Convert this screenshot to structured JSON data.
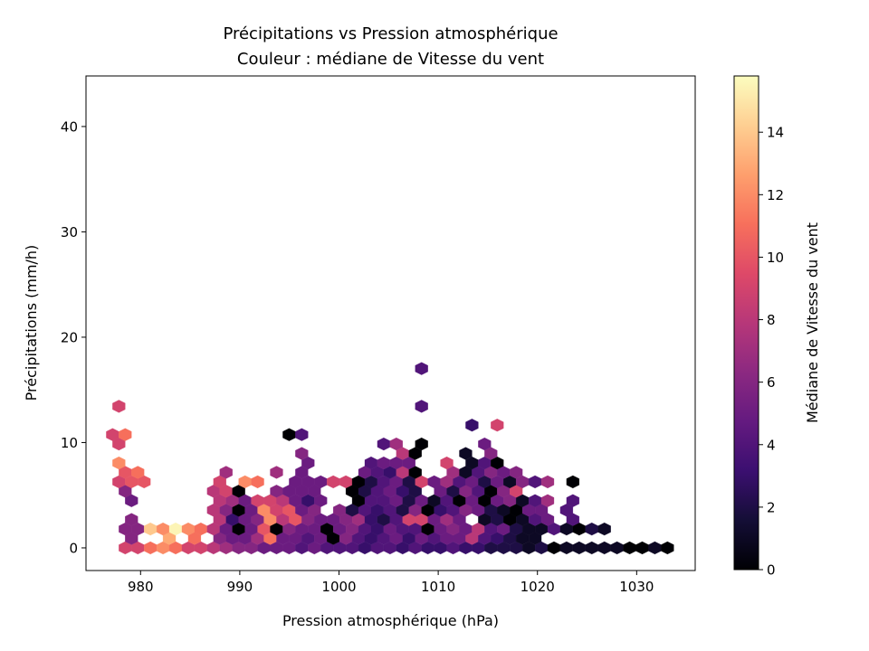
{
  "chart_data": {
    "type": "hexbin",
    "title": [
      "Précipitations vs Pression atmosphérique",
      "Couleur : médiane de Vitesse du vent"
    ],
    "xlabel": "Pression atmosphérique (hPa)",
    "ylabel": "Précipitations (mm/h)",
    "xlim": [
      974.5,
      1035.9
    ],
    "ylim": [
      -2.15,
      44.8
    ],
    "xticks": [
      980,
      990,
      1000,
      1010,
      1020,
      1030
    ],
    "yticks": [
      0,
      10,
      20,
      30,
      40
    ],
    "grid": false,
    "colorbar": {
      "label": "Médiane de Vitesse du vent",
      "cmap": "magma",
      "vmin": 0,
      "vmax": 15.8,
      "ticks": [
        0,
        2,
        4,
        6,
        8,
        10,
        12,
        14
      ],
      "position": "right"
    },
    "hex_grid": {
      "x_origin": 977.18,
      "x_step": 1.271,
      "y_step": 0.896
    },
    "rows": [
      {
        "y": 0.0,
        "shifted": false,
        "values": [
          null,
          9,
          9,
          11,
          12,
          11,
          9,
          9,
          8,
          7,
          6,
          6,
          5,
          5,
          5,
          4,
          5,
          4,
          4,
          4,
          3,
          4,
          4,
          3,
          4,
          3,
          3,
          4,
          3,
          3,
          2,
          2,
          2,
          1,
          2,
          0,
          1,
          1,
          1,
          1,
          1,
          0,
          0,
          1,
          0
        ]
      },
      {
        "y": 0.9,
        "shifted": true,
        "values": [
          null,
          6,
          null,
          null,
          13,
          null,
          11,
          null,
          6,
          5,
          5,
          7,
          11,
          5,
          5,
          4,
          5,
          0,
          6,
          4,
          3,
          4,
          5,
          3,
          5,
          4,
          5,
          5,
          8,
          4,
          3,
          2,
          1,
          1
        ]
      },
      {
        "y": 1.79,
        "shifted": false,
        "values": [
          null,
          6,
          6,
          14,
          12,
          15.5,
          12,
          11,
          8,
          5,
          0,
          5,
          10,
          0,
          6,
          5,
          5,
          0,
          5,
          6,
          4,
          3,
          5,
          4,
          4,
          0,
          5,
          6,
          5,
          8,
          4,
          5,
          2,
          1,
          1,
          4,
          1,
          0,
          2,
          1
        ]
      },
      {
        "y": 2.69,
        "shifted": true,
        "values": [
          null,
          6,
          null,
          null,
          null,
          null,
          null,
          null,
          8,
          3,
          5,
          6,
          12,
          8,
          10,
          6,
          5,
          5,
          6,
          7,
          3,
          2,
          4,
          9,
          9,
          5,
          7,
          5,
          null,
          1,
          2,
          0,
          1,
          4,
          5,
          null,
          4
        ]
      },
      {
        "y": 3.58,
        "shifted": false,
        "values": [
          null,
          null,
          null,
          null,
          null,
          null,
          null,
          null,
          8,
          6,
          0,
          5,
          12,
          9,
          10,
          5,
          6,
          null,
          6,
          2,
          4,
          3,
          4,
          2,
          6,
          0,
          3,
          4,
          6,
          5,
          2,
          1,
          0,
          5,
          5,
          null,
          4
        ]
      },
      {
        "y": 4.48,
        "shifted": true,
        "values": [
          null,
          5,
          null,
          null,
          null,
          null,
          null,
          null,
          8,
          7,
          5,
          9,
          9,
          8,
          5,
          3,
          5,
          null,
          null,
          0,
          4,
          4,
          5,
          2,
          5,
          1,
          4,
          0,
          5,
          0,
          5,
          6,
          1,
          4,
          7,
          null,
          4
        ]
      },
      {
        "y": 5.38,
        "shifted": false,
        "values": [
          null,
          6,
          null,
          null,
          null,
          null,
          null,
          null,
          8,
          9,
          0,
          null,
          null,
          6,
          5,
          5,
          5,
          null,
          null,
          0,
          2,
          4,
          5,
          3,
          2,
          null,
          5,
          2,
          6,
          4,
          0,
          6,
          9
        ]
      },
      {
        "y": 6.27,
        "shifted": true,
        "values": [
          9,
          10,
          10,
          null,
          null,
          null,
          null,
          null,
          9,
          null,
          12,
          11,
          null,
          null,
          5,
          5,
          5,
          9,
          9,
          0,
          2,
          4,
          5,
          2,
          9,
          5,
          7,
          4,
          5,
          2,
          5,
          1,
          6,
          4,
          7,
          null,
          0
        ]
      },
      {
        "y": 7.17,
        "shifted": false,
        "values": {
          "1": 10,
          "2": 11,
          "9": 7,
          "13": 7,
          "15": 5,
          "20": 5,
          "21": 4,
          "22": 3,
          "23": 8,
          "24": 0,
          "27": 7,
          "28": 1,
          "29": 4,
          "30": 6,
          "31": 5,
          "32": 6
        }
      },
      {
        "y": 8.06,
        "shifted": true,
        "values": {
          "0": 12,
          "15": 5,
          "20": 4,
          "21": 5,
          "22": 5,
          "23": 5,
          "26": 9,
          "28": 1,
          "29": 4,
          "30": 0
        }
      },
      {
        "y": 8.96,
        "shifted": false,
        "values": {
          "15": 6,
          "23": 8,
          "24": 0,
          "28": 1,
          "30": 6
        }
      },
      {
        "y": 9.86,
        "shifted": true,
        "values": {
          "0": 9,
          "21": 4,
          "22": 7,
          "24": 0,
          "29": 5
        }
      },
      {
        "y": 10.75,
        "shifted": false,
        "values": {
          "0": 9,
          "1": 11,
          "14": 0,
          "15": 4
        }
      },
      {
        "y": 11.65,
        "shifted": true,
        "values": {
          "28": 3,
          "30": 9
        }
      },
      {
        "y": 13.44,
        "shifted": true,
        "values": {
          "0": 9,
          "24": 4
        }
      },
      {
        "y": 17.02,
        "shifted": true,
        "values": {
          "24": 4
        }
      }
    ]
  }
}
